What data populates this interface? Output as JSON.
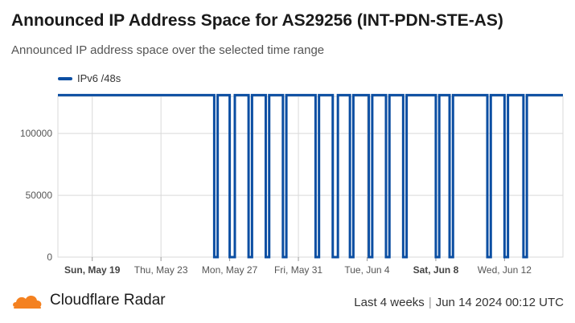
{
  "header": {
    "title": "Announced IP Address Space for AS29256 (INT-PDN-STE-AS)",
    "subtitle": "Announced IP address space over the selected time range"
  },
  "footer": {
    "brand": "Cloudflare Radar",
    "range": "Last 4 weeks",
    "timestamp": "Jun 14 2024 00:12 UTC",
    "logo_icon": "cloudflare-cloud-icon"
  },
  "colors": {
    "series": "#0b4ea2",
    "grid": "#d9d9d9",
    "logo": "#f48120"
  },
  "chart_data": {
    "type": "line",
    "title": "Announced IP Address Space for AS29256 (INT-PDN-STE-AS)",
    "xlabel": "",
    "ylabel": "",
    "x_range_days": [
      -2,
      27.4
    ],
    "ylim": [
      0,
      130000
    ],
    "y_ticks": [
      0,
      50000,
      100000
    ],
    "y_tick_labels": [
      "0",
      "50000",
      "100000"
    ],
    "x_ticks": [
      {
        "day": 0,
        "label": "Sun, May 19",
        "bold": true
      },
      {
        "day": 4,
        "label": "Thu, May 23",
        "bold": false
      },
      {
        "day": 8,
        "label": "Mon, May 27",
        "bold": false
      },
      {
        "day": 12,
        "label": "Fri, May 31",
        "bold": false
      },
      {
        "day": 16,
        "label": "Tue, Jun 4",
        "bold": false
      },
      {
        "day": 20,
        "label": "Sat, Jun 8",
        "bold": true
      },
      {
        "day": 24,
        "label": "Wed, Jun 12",
        "bold": false
      }
    ],
    "legend": "top-left",
    "grid": true,
    "series": [
      {
        "name": "IPv6 /48s",
        "baseline": 131072,
        "drops": [
          {
            "start": 7.1,
            "end": 7.3,
            "value": 0
          },
          {
            "start": 8.0,
            "end": 8.3,
            "value": 0
          },
          {
            "start": 9.1,
            "end": 9.3,
            "value": 0
          },
          {
            "start": 10.1,
            "end": 10.3,
            "value": 0
          },
          {
            "start": 11.1,
            "end": 11.3,
            "value": 0
          },
          {
            "start": 13.0,
            "end": 13.2,
            "value": 0
          },
          {
            "start": 14.0,
            "end": 14.3,
            "value": 0
          },
          {
            "start": 15.0,
            "end": 15.2,
            "value": 0
          },
          {
            "start": 16.1,
            "end": 16.3,
            "value": 0
          },
          {
            "start": 17.1,
            "end": 17.3,
            "value": 0
          },
          {
            "start": 18.1,
            "end": 18.3,
            "value": 0
          },
          {
            "start": 20.0,
            "end": 20.2,
            "value": 0
          },
          {
            "start": 20.8,
            "end": 21.0,
            "value": 0
          },
          {
            "start": 23.0,
            "end": 23.2,
            "value": 0
          },
          {
            "start": 24.0,
            "end": 24.2,
            "value": 0
          },
          {
            "start": 25.1,
            "end": 25.3,
            "value": 0
          }
        ]
      }
    ]
  }
}
